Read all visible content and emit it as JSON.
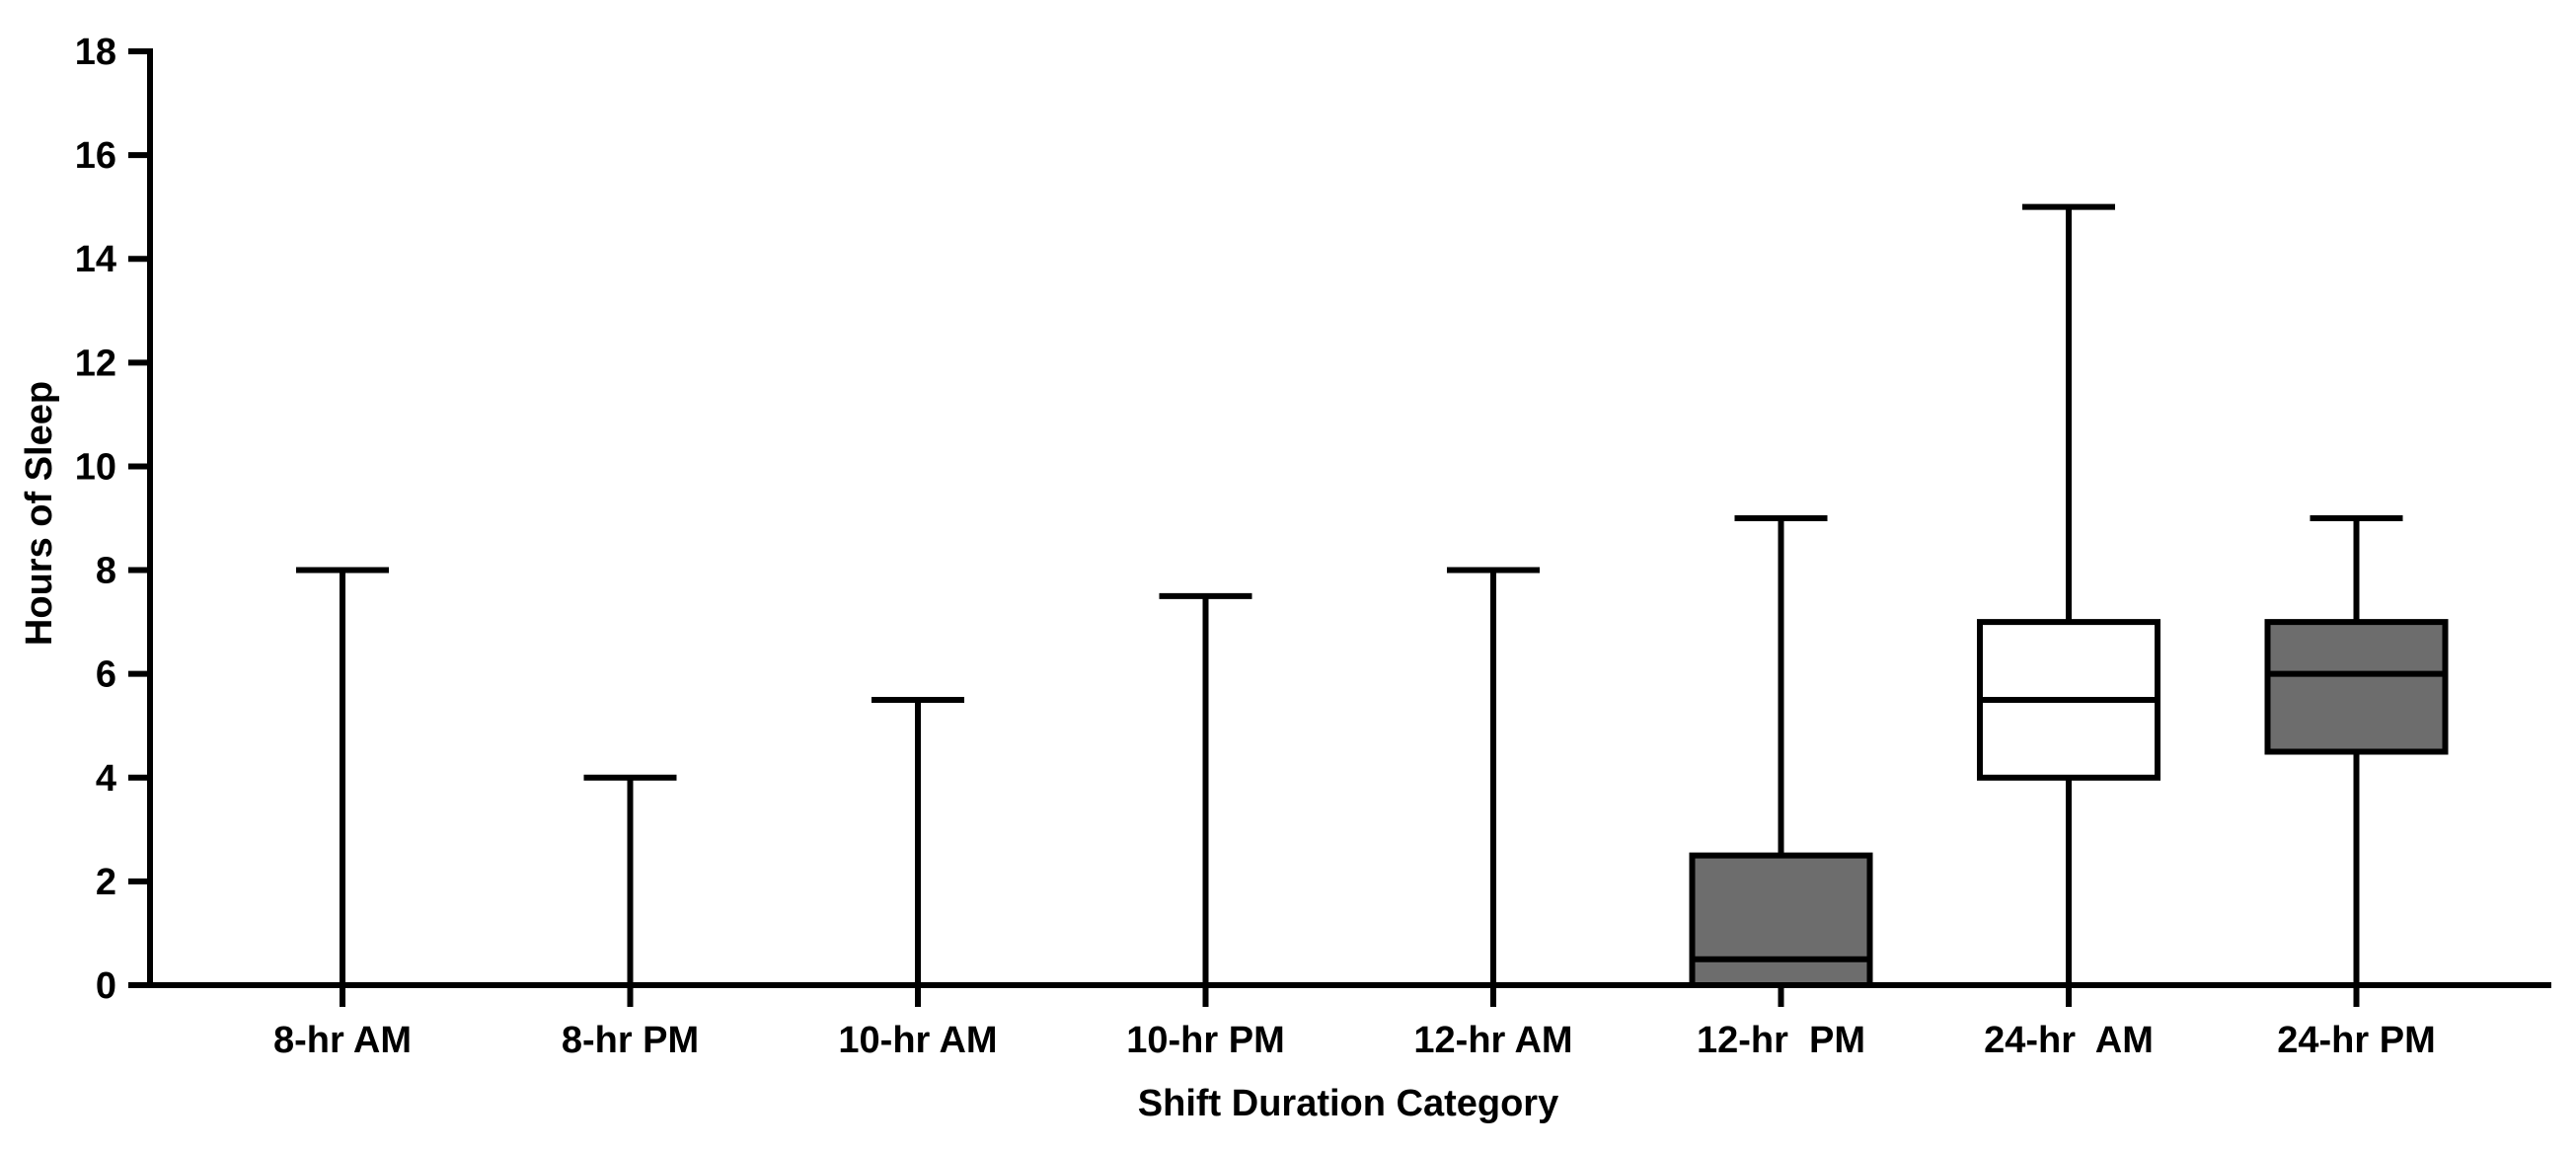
{
  "chart_data": {
    "type": "box",
    "title": "",
    "xlabel": "Shift Duration Category",
    "ylabel": "Hours of Sleep",
    "ylim": [
      0,
      18
    ],
    "yticks": [
      "0",
      "2",
      "4",
      "6",
      "8",
      "10",
      "12",
      "14",
      "16",
      "18"
    ],
    "grid": false,
    "legend": "none",
    "categories": [
      "8-hr AM",
      "8-hr PM",
      "10-hr AM",
      "10-hr PM",
      "12-hr AM",
      "12-hr  PM",
      "24-hr  AM",
      "24-hr PM"
    ],
    "boxes": [
      {
        "category": "8-hr AM",
        "min": 0,
        "q1": 0,
        "median": 0,
        "q3": 0,
        "max": 8,
        "fill": "#ffffff"
      },
      {
        "category": "8-hr PM",
        "min": 0,
        "q1": 0,
        "median": 0,
        "q3": 0,
        "max": 4,
        "fill": "#ffffff"
      },
      {
        "category": "10-hr AM",
        "min": 0,
        "q1": 0,
        "median": 0,
        "q3": 0,
        "max": 5.5,
        "fill": "#ffffff"
      },
      {
        "category": "10-hr PM",
        "min": 0,
        "q1": 0,
        "median": 0,
        "q3": 0,
        "max": 7.5,
        "fill": "#ffffff"
      },
      {
        "category": "12-hr AM",
        "min": 0,
        "q1": 0,
        "median": 0,
        "q3": 0,
        "max": 8,
        "fill": "#ffffff"
      },
      {
        "category": "12-hr  PM",
        "min": 0,
        "q1": 0,
        "median": 0.5,
        "q3": 2.5,
        "max": 9,
        "fill": "#6d6d6d"
      },
      {
        "category": "24-hr  AM",
        "min": 0,
        "q1": 4,
        "median": 5.5,
        "q3": 7,
        "max": 15,
        "fill": "#ffffff"
      },
      {
        "category": "24-hr PM",
        "min": 0,
        "q1": 4.5,
        "median": 6,
        "q3": 7,
        "max": 9,
        "fill": "#6d6d6d"
      }
    ],
    "colors": {
      "line": "#000000",
      "dark_fill": "#6d6d6d",
      "light_fill": "#ffffff"
    }
  }
}
